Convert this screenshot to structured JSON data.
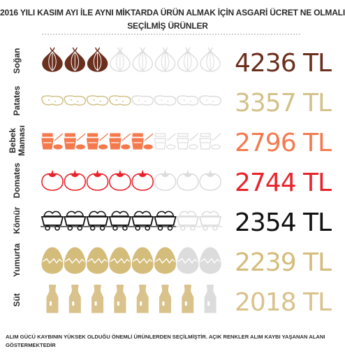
{
  "title_line1": "2016 YILI KASIM AYI İLE AYNI MİKTARDA ÜRÜN ALMAK İÇİN ASGARİ ÜCRET NE OLMALI",
  "title_line2": "SEÇİLMİŞ ÜRÜNLER",
  "footnote": "ALIM GÜCÜ KAYBININ YÜKSEK OLDUĞU ÖNEMLİ ÜRÜNLERDEN SEÇİLMİŞTİR. AÇIK RENKLER ALIM KAYBI YAŞANAN ALANI GÖSTERMEKTEDİR",
  "colors": {
    "muted": "#dcdcdc",
    "divider": "#c4c4c4"
  },
  "chart_data": {
    "type": "pictograph",
    "total_icons": 8,
    "unit": "TL",
    "rows": [
      {
        "label": "Soğan",
        "label_lines": [
          "Soğan"
        ],
        "value": 4236,
        "value_text": "4236 TL",
        "icon": "onion-icon",
        "filled_icons": 3,
        "color": "#6b2f1e"
      },
      {
        "label": "Patates",
        "label_lines": [
          "Patates"
        ],
        "value": 3357,
        "value_text": "3357 TL",
        "icon": "potato-icon",
        "filled_icons": 4,
        "color": "#d2c28a"
      },
      {
        "label": "Bebek Maması",
        "label_lines": [
          "Bebek",
          "Maması"
        ],
        "value": 2796,
        "value_text": "2796 TL",
        "icon": "baby-food-icon",
        "filled_icons": 5,
        "color": "#f47a4e"
      },
      {
        "label": "Domates",
        "label_lines": [
          "Domates"
        ],
        "value": 2744,
        "value_text": "2744 TL",
        "icon": "tomato-icon",
        "filled_icons": 5,
        "color": "#e8242b"
      },
      {
        "label": "Kömür",
        "label_lines": [
          "Kömür"
        ],
        "value": 2354,
        "value_text": "2354 TL",
        "icon": "coal-cart-icon",
        "filled_icons": 6,
        "color": "#111111"
      },
      {
        "label": "Yumurta",
        "label_lines": [
          "Yumurta"
        ],
        "value": 2239,
        "value_text": "2239 TL",
        "icon": "egg-icon",
        "filled_icons": 6,
        "color": "#d4bc7a"
      },
      {
        "label": "Süt",
        "label_lines": [
          "Süt"
        ],
        "value": 2018,
        "value_text": "2018 TL",
        "icon": "milk-bottle-icon",
        "filled_icons": 7,
        "color": "#d9c28c"
      }
    ]
  }
}
